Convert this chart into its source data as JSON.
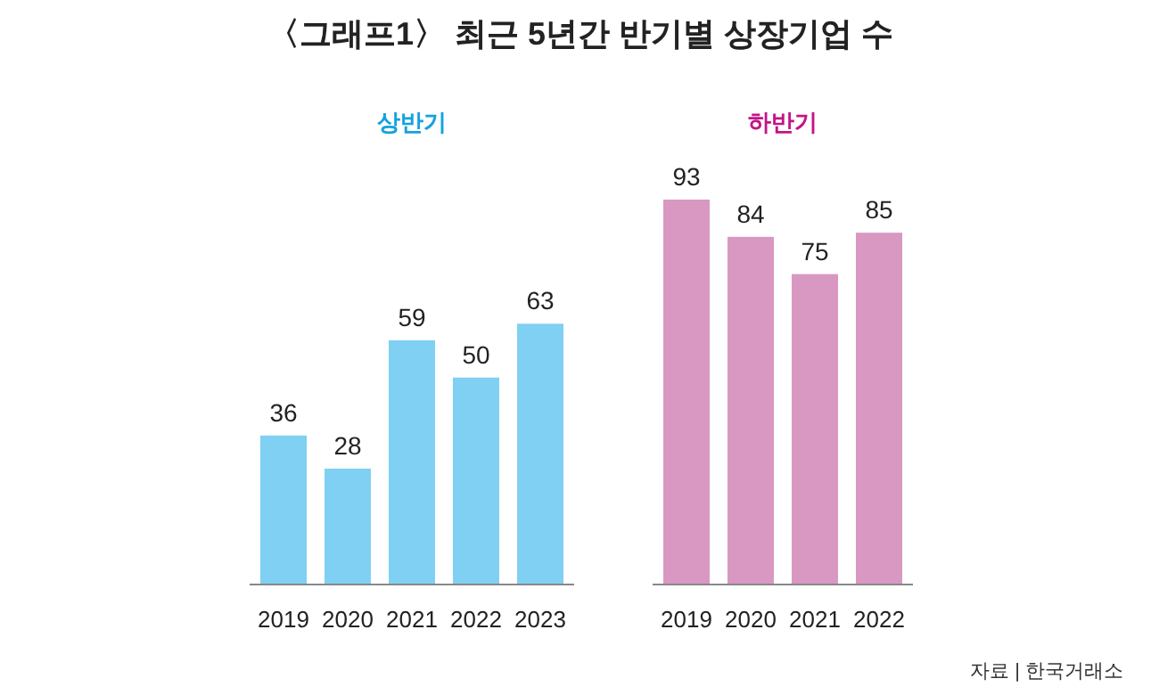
{
  "chart_data": [
    {
      "type": "other",
      "title": "〈그래프1〉 최근 5년간 반기별 상장기업 수",
      "annotations": [
        "자료 | 한국거래소"
      ]
    },
    {
      "type": "bar",
      "title": "상반기",
      "categories": [
        "2019",
        "2020",
        "2021",
        "2022",
        "2023"
      ],
      "values": [
        36,
        28,
        59,
        50,
        63
      ],
      "color": "#7fd0f2",
      "data_labels": true
    },
    {
      "type": "bar",
      "title": "하반기",
      "categories": [
        "2019",
        "2020",
        "2021",
        "2022"
      ],
      "values": [
        93,
        84,
        75,
        85
      ],
      "color": "#d898c2",
      "data_labels": true
    }
  ]
}
